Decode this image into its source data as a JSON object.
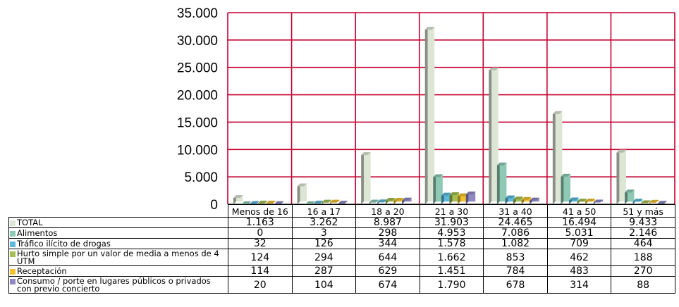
{
  "chart_data": {
    "type": "bar",
    "categories": [
      "Menos de 16",
      "16 a 17",
      "18 a 20",
      "21 a 30",
      "31 a 40",
      "41 a 50",
      "51 y más"
    ],
    "series": [
      {
        "name": "TOTAL",
        "color": "#dde6d5",
        "values": [
          1163,
          3262,
          8987,
          31903,
          24465,
          16494,
          9433
        ],
        "labels": [
          "1.163",
          "3.262",
          "8.987",
          "31.903",
          "24.465",
          "16.494",
          "9.433"
        ]
      },
      {
        "name": "Alimentos",
        "color": "#8ec9b4",
        "values": [
          0,
          3,
          298,
          4953,
          7086,
          5031,
          2146
        ],
        "labels": [
          "0",
          "3",
          "298",
          "4.953",
          "7.086",
          "5.031",
          "2.146"
        ]
      },
      {
        "name": "Tráfico ilícito de drogas",
        "color": "#5cb8dc",
        "values": [
          32,
          126,
          344,
          1578,
          1082,
          709,
          464
        ],
        "labels": [
          "32",
          "126",
          "344",
          "1.578",
          "1.082",
          "709",
          "464"
        ]
      },
      {
        "name": "Hurto simple por un valor de media a menos de 4 UTM",
        "color": "#a6bf52",
        "values": [
          124,
          294,
          644,
          1662,
          853,
          462,
          188
        ],
        "labels": [
          "124",
          "294",
          "644",
          "1.662",
          "853",
          "462",
          "188"
        ]
      },
      {
        "name": "Receptación",
        "color": "#f2c12e",
        "values": [
          114,
          287,
          629,
          1451,
          784,
          483,
          270
        ],
        "labels": [
          "114",
          "287",
          "629",
          "1.451",
          "784",
          "483",
          "270"
        ]
      },
      {
        "name": "Consumo / porte en lugares públicos o privados con previo concierto",
        "color": "#8f88c2",
        "values": [
          20,
          104,
          674,
          1790,
          678,
          314,
          88
        ],
        "labels": [
          "20",
          "104",
          "674",
          "1.790",
          "678",
          "314",
          "88"
        ]
      }
    ],
    "ylim": [
      0,
      35000
    ],
    "yticks": [
      0,
      5000,
      10000,
      15000,
      20000,
      25000,
      30000,
      35000
    ],
    "ytick_labels": [
      "0",
      "5.000",
      "10.000",
      "15.000",
      "20.000",
      "25.000",
      "30.000",
      "35.000"
    ],
    "grid": true,
    "grid_color": "#c40030",
    "legend": "data-table-below",
    "title": "",
    "xlabel": "",
    "ylabel": ""
  }
}
